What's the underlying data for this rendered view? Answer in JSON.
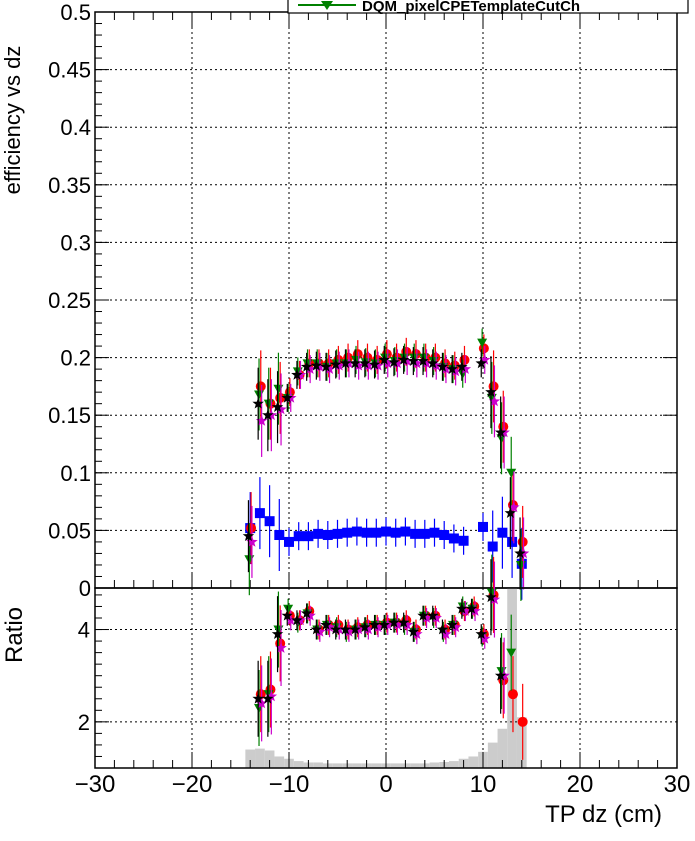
{
  "chart_data": [
    {
      "type": "scatter",
      "ylabel": "efficiency vs dz",
      "legend_text": "DQM_pixelCPETemplateCutCh",
      "xlim": [
        -30,
        30
      ],
      "ylim": [
        0,
        0.5
      ],
      "xticks": [
        -30,
        -20,
        -10,
        0,
        10,
        20,
        30
      ],
      "yticks": [
        0,
        0.05,
        0.1,
        0.15,
        0.2,
        0.25,
        0.3,
        0.35,
        0.4,
        0.45,
        0.5
      ],
      "ytick_labels": [
        "0",
        "0.05",
        "0.1",
        "0.15",
        "0.2",
        "0.25",
        "0.3",
        "0.35",
        "0.4",
        "0.45",
        "0.5"
      ],
      "grid": true,
      "legend_position": "top-right",
      "series": [
        {
          "color": "#0000ff",
          "marker": "square",
          "x": [
            -14,
            -13,
            -12,
            -11,
            -10,
            -9,
            -8,
            -7,
            -6,
            -5,
            -4,
            -3,
            -2,
            -1,
            0,
            1,
            2,
            3,
            4,
            5,
            6,
            7,
            8,
            10,
            11,
            12,
            13,
            14
          ],
          "y": [
            0.052,
            0.065,
            0.058,
            0.046,
            0.04,
            0.045,
            0.045,
            0.047,
            0.046,
            0.047,
            0.048,
            0.049,
            0.048,
            0.048,
            0.049,
            0.048,
            0.049,
            0.047,
            0.047,
            0.048,
            0.046,
            0.043,
            0.041,
            0.053,
            0.036,
            0.048,
            0.04,
            0.021
          ]
        },
        {
          "color": "#ff0000",
          "marker": "circle",
          "x": [
            -14,
            -13,
            -12,
            -11,
            -10,
            -9,
            -8,
            -7,
            -6,
            -5,
            -4,
            -3,
            -2,
            -1,
            0,
            1,
            2,
            3,
            4,
            5,
            6,
            7,
            8,
            10,
            11,
            12,
            13,
            14
          ],
          "y": [
            0.052,
            0.175,
            0.16,
            0.165,
            0.17,
            0.185,
            0.195,
            0.195,
            0.195,
            0.198,
            0.2,
            0.203,
            0.2,
            0.198,
            0.203,
            0.2,
            0.205,
            0.203,
            0.2,
            0.2,
            0.195,
            0.193,
            0.198,
            0.208,
            0.175,
            0.14,
            0.072,
            0.04
          ]
        },
        {
          "color": "#008000",
          "marker": "triangle-down",
          "x": [
            -14,
            -13,
            -12,
            -11,
            -10,
            -9,
            -8,
            -7,
            -6,
            -5,
            -4,
            -3,
            -2,
            -1,
            0,
            1,
            2,
            3,
            4,
            5,
            6,
            7,
            8,
            10,
            11,
            12,
            13,
            14
          ],
          "y": [
            0.025,
            0.168,
            0.16,
            0.173,
            0.165,
            0.188,
            0.195,
            0.195,
            0.192,
            0.195,
            0.195,
            0.198,
            0.196,
            0.195,
            0.2,
            0.197,
            0.2,
            0.2,
            0.2,
            0.197,
            0.192,
            0.19,
            0.186,
            0.213,
            0.165,
            0.13,
            0.1,
            0.02
          ]
        },
        {
          "color": "#cc00cc",
          "marker": "star",
          "x": [
            -14,
            -13,
            -12,
            -11,
            -10,
            -9,
            -8,
            -7,
            -6,
            -5,
            -4,
            -3,
            -2,
            -1,
            0,
            1,
            2,
            3,
            4,
            5,
            6,
            7,
            8,
            10,
            11,
            12,
            13,
            14
          ],
          "y": [
            0.04,
            0.145,
            0.15,
            0.155,
            0.165,
            0.185,
            0.19,
            0.192,
            0.19,
            0.193,
            0.195,
            0.193,
            0.193,
            0.193,
            0.195,
            0.195,
            0.197,
            0.195,
            0.195,
            0.193,
            0.19,
            0.188,
            0.19,
            0.198,
            0.162,
            0.135,
            0.07,
            0.03
          ]
        },
        {
          "color": "#000000",
          "marker": "star",
          "x": [
            -14,
            -13,
            -12,
            -11,
            -10,
            -9,
            -8,
            -7,
            -6,
            -5,
            -4,
            -3,
            -2,
            -1,
            0,
            1,
            2,
            3,
            4,
            5,
            6,
            7,
            8,
            10,
            11,
            12,
            13,
            14
          ],
          "y": [
            0.045,
            0.16,
            0.15,
            0.157,
            0.165,
            0.185,
            0.192,
            0.193,
            0.192,
            0.194,
            0.195,
            0.195,
            0.195,
            0.194,
            0.198,
            0.196,
            0.198,
            0.197,
            0.197,
            0.195,
            0.192,
            0.19,
            0.192,
            0.195,
            0.17,
            0.135,
            0.065,
            0.03
          ]
        }
      ]
    },
    {
      "type": "scatter",
      "ylabel": "Ratio",
      "xlabel": "TP dz (cm)",
      "xlim": [
        -30,
        30
      ],
      "ylim": [
        1,
        4.9
      ],
      "xticks": [
        -30,
        -20,
        -10,
        0,
        10,
        20,
        30
      ],
      "xtick_labels": [
        "−30",
        "−20",
        "−10",
        "0",
        "10",
        "20",
        "30"
      ],
      "yticks": [
        2,
        4
      ],
      "ytick_labels": [
        "2",
        "4"
      ],
      "grid": true,
      "background_histogram": {
        "color": "#cccccc",
        "x": [
          -14,
          -13,
          -12,
          -11,
          -10,
          -9,
          -8,
          -7,
          -6,
          -5,
          -4,
          -3,
          -2,
          -1,
          0,
          1,
          2,
          3,
          4,
          5,
          6,
          7,
          8,
          9,
          10,
          11,
          12,
          13,
          14
        ],
        "y": [
          1.4,
          1.42,
          1.38,
          1.25,
          1.2,
          1.15,
          1.12,
          1.12,
          1.1,
          1.1,
          1.1,
          1.1,
          1.1,
          1.1,
          1.1,
          1.1,
          1.1,
          1.1,
          1.1,
          1.12,
          1.13,
          1.15,
          1.2,
          1.25,
          1.35,
          1.55,
          1.85,
          4.9,
          2.1
        ]
      },
      "series": [
        {
          "color": "#ff0000",
          "marker": "circle",
          "x": [
            -13,
            -12,
            -11,
            -10,
            -9,
            -8,
            -7,
            -6,
            -5,
            -4,
            -3,
            -2,
            -1,
            0,
            1,
            2,
            3,
            4,
            5,
            6,
            7,
            8,
            9,
            10,
            11,
            12,
            13,
            14
          ],
          "y": [
            2.6,
            2.7,
            3.7,
            4.3,
            4.2,
            4.4,
            4.0,
            4.1,
            4.1,
            4.0,
            4.05,
            4.1,
            4.1,
            4.15,
            4.15,
            4.2,
            4.0,
            4.3,
            4.3,
            4.0,
            4.1,
            4.4,
            4.5,
            3.9,
            4.75,
            2.9,
            2.6,
            2.0
          ]
        },
        {
          "color": "#008000",
          "marker": "triangle-down",
          "x": [
            -13,
            -12,
            -11,
            -10,
            -9,
            -8,
            -7,
            -6,
            -5,
            -4,
            -3,
            -2,
            -1,
            0,
            1,
            2,
            3,
            4,
            5,
            6,
            7,
            8,
            9,
            10,
            11,
            12,
            13
          ],
          "y": [
            2.3,
            2.6,
            4.0,
            4.45,
            4.15,
            4.35,
            4.0,
            4.1,
            4.05,
            3.95,
            4.0,
            4.05,
            4.1,
            4.1,
            4.15,
            4.1,
            3.95,
            4.3,
            4.25,
            3.95,
            4.1,
            4.5,
            4.45,
            3.85,
            4.8,
            3.1,
            3.5
          ]
        },
        {
          "color": "#cc00cc",
          "marker": "star",
          "x": [
            -13,
            -12,
            -11,
            -10,
            -9,
            -8,
            -7,
            -6,
            -5,
            -4,
            -3,
            -2,
            -1,
            0,
            1,
            2,
            3,
            4,
            5,
            6,
            7,
            8,
            9,
            10,
            11,
            12
          ],
          "y": [
            2.4,
            2.55,
            3.6,
            4.2,
            4.2,
            4.3,
            3.95,
            4.05,
            4.0,
            3.95,
            4.0,
            4.0,
            4.05,
            4.1,
            4.1,
            4.1,
            3.9,
            4.25,
            4.25,
            3.9,
            4.05,
            4.4,
            4.4,
            3.8,
            4.65,
            3.0
          ]
        },
        {
          "color": "#000000",
          "marker": "star",
          "x": [
            -13,
            -12,
            -11,
            -10,
            -9,
            -8,
            -7,
            -6,
            -5,
            -4,
            -3,
            -2,
            -1,
            0,
            1,
            2,
            3,
            4,
            5,
            6,
            7,
            8,
            9,
            10,
            11,
            12
          ],
          "y": [
            2.5,
            2.5,
            3.9,
            4.3,
            4.2,
            4.35,
            4.0,
            4.1,
            4.0,
            4.0,
            4.0,
            4.05,
            4.1,
            4.1,
            4.15,
            4.15,
            3.95,
            4.3,
            4.3,
            4.0,
            4.1,
            4.45,
            4.45,
            3.9,
            4.7,
            3.0
          ]
        }
      ]
    }
  ]
}
